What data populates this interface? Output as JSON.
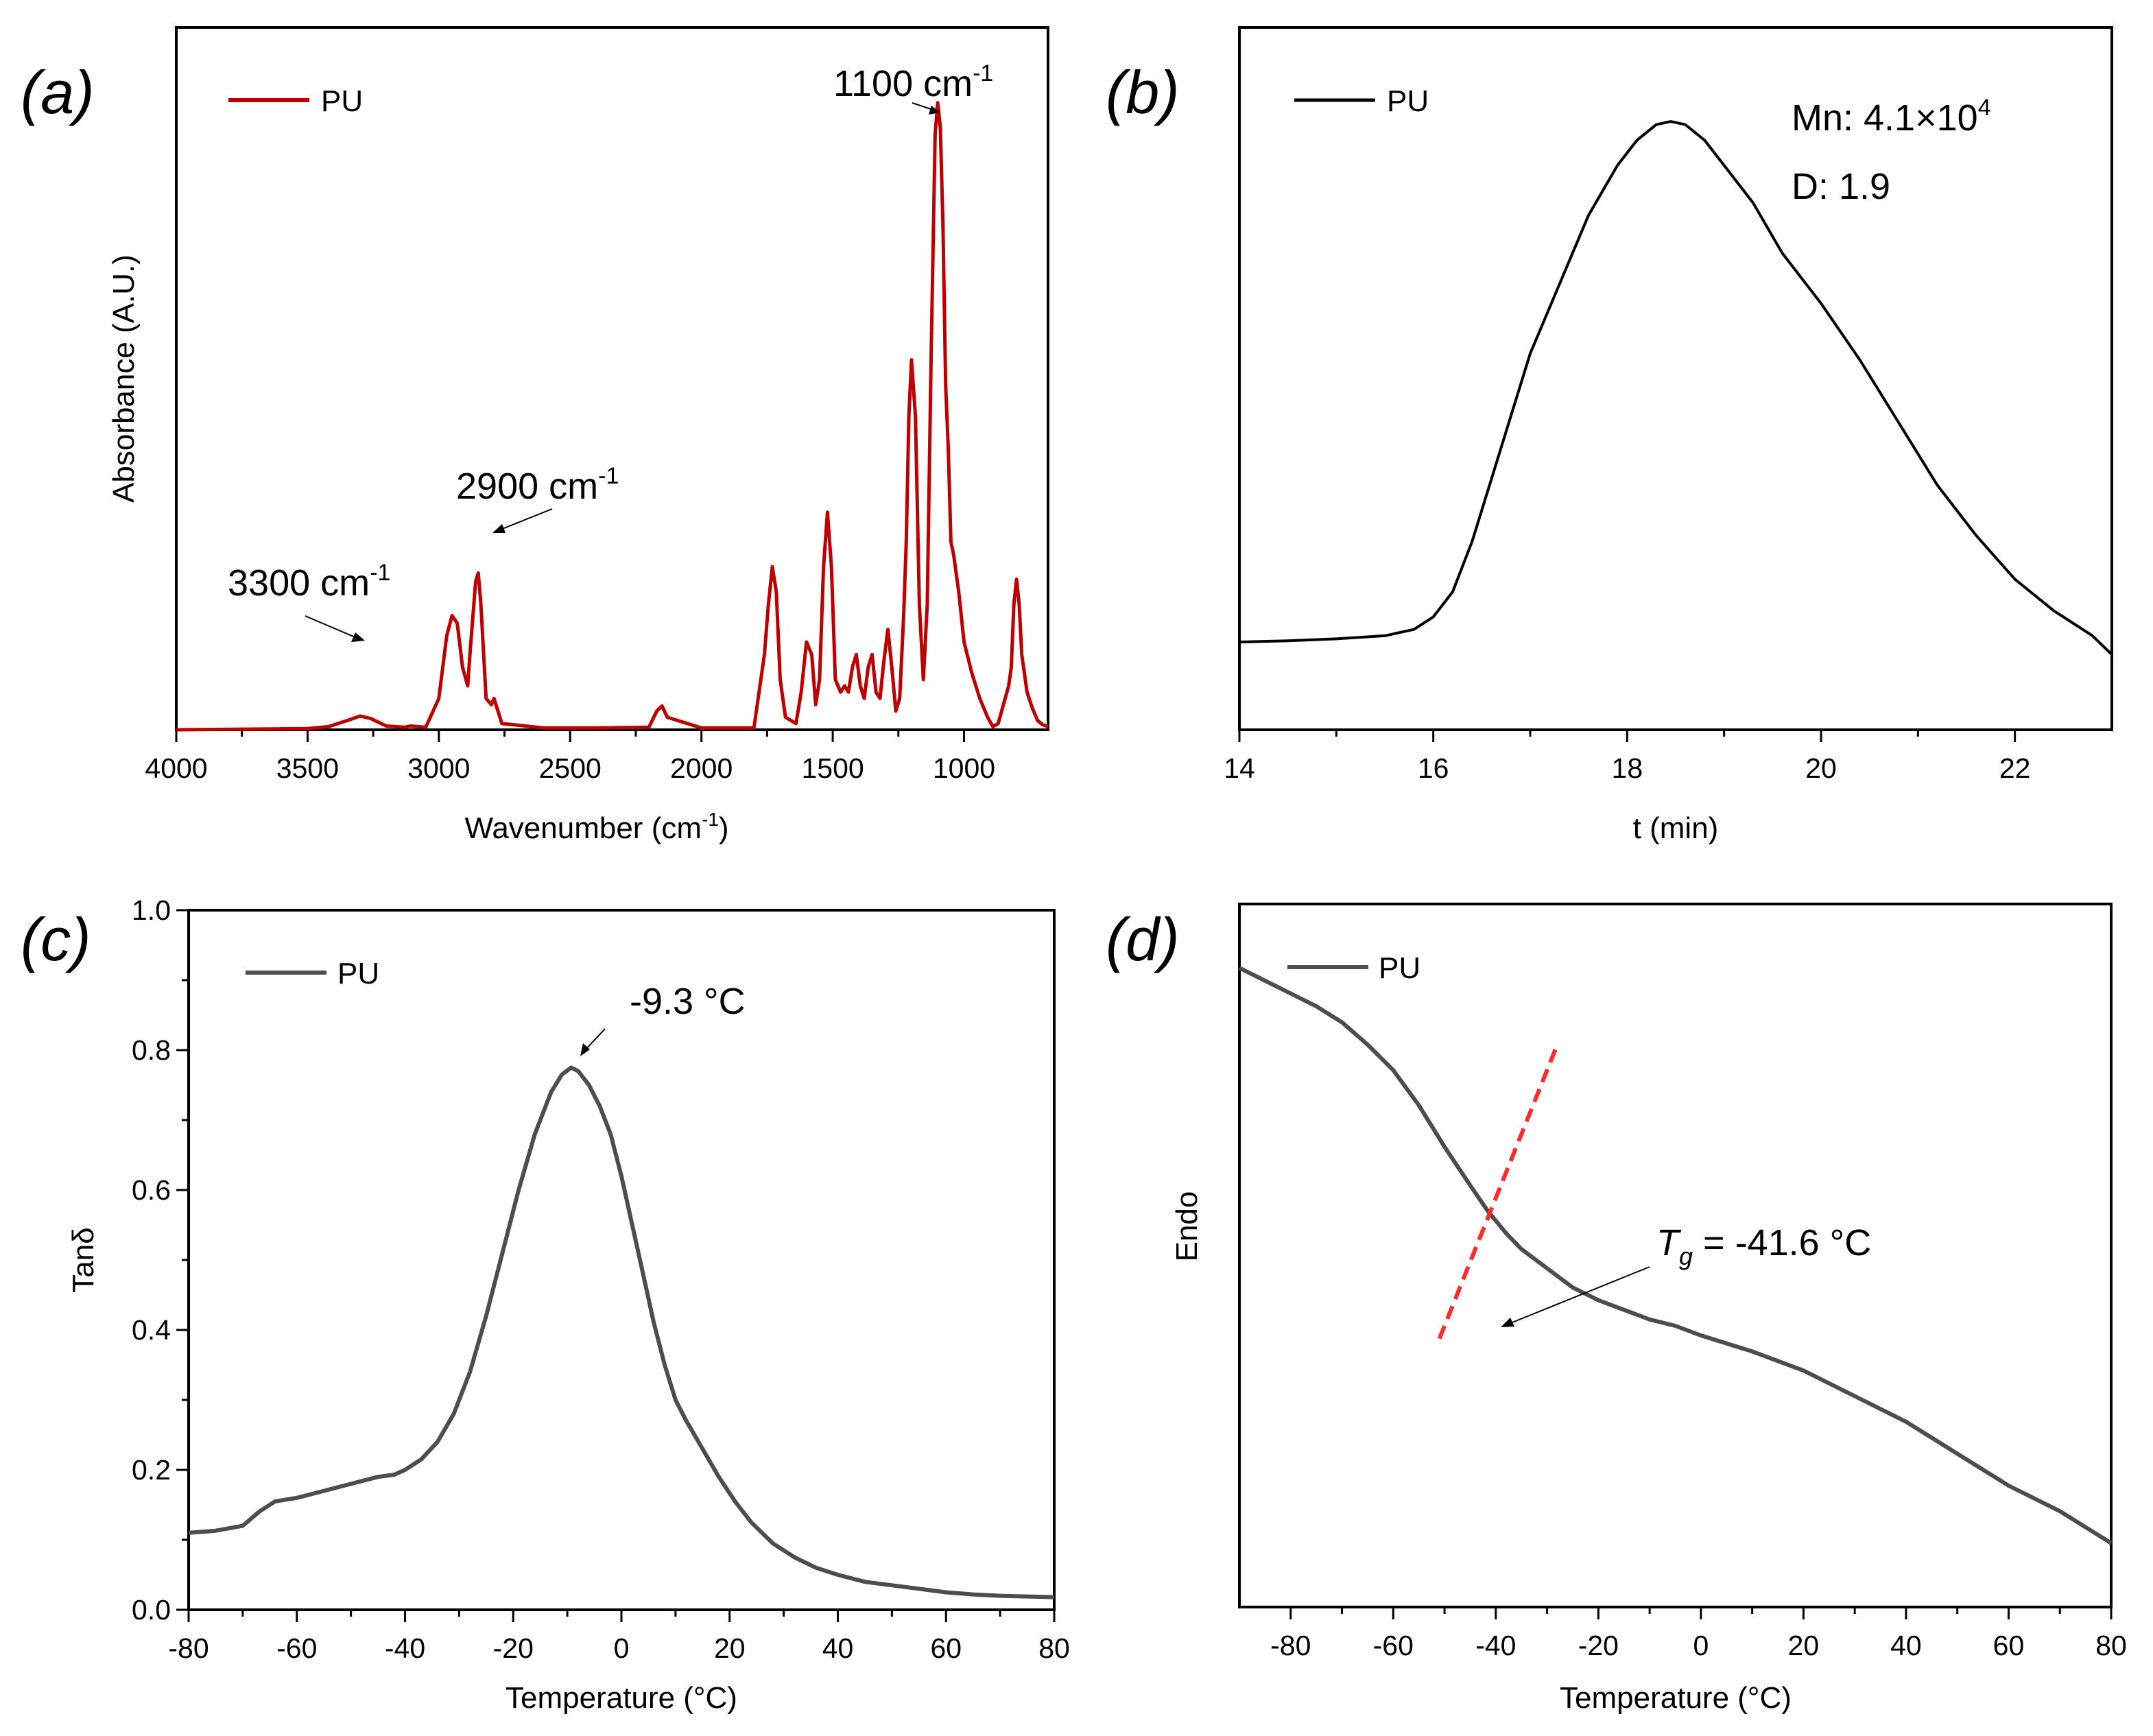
{
  "colors": {
    "ftir": "#c00000",
    "gpc": "#000000",
    "dma": "#4d4d4d",
    "dsc": "#4d4d4d",
    "tangent": "#ff2a2a"
  },
  "chart_data": [
    {
      "panel": "(a)",
      "type": "line",
      "title": "",
      "xlabel": "Wavenumber (cm",
      "xlabel_sup": "-1",
      "xlabel_suffix": ")",
      "ylabel": "Absorbance (A.U.)",
      "xlim": [
        4000,
        680
      ],
      "xticks": [
        4000,
        3500,
        3000,
        2500,
        2000,
        1500,
        1000
      ],
      "ylim": [
        0,
        1.12
      ],
      "yticks_shown": false,
      "legend": [
        "PU"
      ],
      "series": [
        {
          "name": "PU",
          "x": [
            4000,
            3500,
            3420,
            3340,
            3300,
            3260,
            3200,
            3130,
            3110,
            3050,
            3000,
            2970,
            2950,
            2930,
            2910,
            2890,
            2880,
            2860,
            2850,
            2840,
            2820,
            2800,
            2790,
            2760,
            2600,
            2400,
            2200,
            2170,
            2150,
            2130,
            2000,
            1800,
            1760,
            1745,
            1730,
            1715,
            1700,
            1680,
            1640,
            1620,
            1600,
            1580,
            1565,
            1550,
            1535,
            1520,
            1505,
            1490,
            1470,
            1455,
            1440,
            1425,
            1410,
            1395,
            1380,
            1365,
            1350,
            1335,
            1320,
            1305,
            1290,
            1275,
            1260,
            1245,
            1230,
            1220,
            1210,
            1200,
            1185,
            1170,
            1155,
            1140,
            1125,
            1110,
            1100,
            1090,
            1080,
            1070,
            1060,
            1050,
            1040,
            1020,
            1000,
            970,
            940,
            910,
            890,
            870,
            850,
            830,
            820,
            810,
            800,
            790,
            780,
            760,
            740,
            720,
            700,
            680
          ],
          "y": [
            0,
            0.002,
            0.005,
            0.016,
            0.022,
            0.018,
            0.006,
            0.004,
            0.006,
            0.004,
            0.05,
            0.15,
            0.182,
            0.17,
            0.1,
            0.07,
            0.13,
            0.236,
            0.25,
            0.2,
            0.05,
            0.04,
            0.05,
            0.01,
            0.003,
            0.003,
            0.004,
            0.03,
            0.038,
            0.02,
            0.003,
            0.003,
            0.12,
            0.2,
            0.26,
            0.22,
            0.08,
            0.02,
            0.01,
            0.06,
            0.14,
            0.12,
            0.04,
            0.08,
            0.26,
            0.347,
            0.26,
            0.08,
            0.06,
            0.07,
            0.06,
            0.1,
            0.12,
            0.07,
            0.05,
            0.1,
            0.12,
            0.06,
            0.05,
            0.11,
            0.16,
            0.1,
            0.03,
            0.05,
            0.18,
            0.3,
            0.5,
            0.59,
            0.5,
            0.2,
            0.08,
            0.2,
            0.6,
            0.95,
            1.0,
            0.96,
            0.8,
            0.55,
            0.45,
            0.3,
            0.28,
            0.22,
            0.14,
            0.09,
            0.05,
            0.02,
            0.005,
            0.01,
            0.04,
            0.07,
            0.1,
            0.2,
            0.24,
            0.2,
            0.12,
            0.06,
            0.035,
            0.015,
            0.008,
            0.005
          ]
        }
      ],
      "annotations": [
        {
          "text": "3300 cm",
          "sup": "-1",
          "x": 3300
        },
        {
          "text": "2900 cm",
          "sup": "-1",
          "x": 2900
        },
        {
          "text": "1100 cm",
          "sup": "-1",
          "x": 1100
        }
      ]
    },
    {
      "panel": "(b)",
      "type": "line",
      "title": "",
      "xlabel": "t (min)",
      "ylabel": "",
      "xlim": [
        14,
        23
      ],
      "xticks": [
        14,
        16,
        18,
        20,
        22
      ],
      "ylim": [
        0,
        1.12
      ],
      "yticks_shown": false,
      "legend": [
        "PU"
      ],
      "series": [
        {
          "name": "PU",
          "x": [
            14,
            14.5,
            15,
            15.5,
            15.8,
            16,
            16.2,
            16.4,
            16.6,
            16.8,
            17,
            17.3,
            17.6,
            17.9,
            18.1,
            18.3,
            18.45,
            18.6,
            18.8,
            19,
            19.3,
            19.6,
            20,
            20.4,
            20.8,
            21.2,
            21.6,
            22,
            22.4,
            22.8,
            23
          ],
          "y": [
            0.14,
            0.142,
            0.145,
            0.15,
            0.16,
            0.18,
            0.22,
            0.3,
            0.4,
            0.5,
            0.6,
            0.71,
            0.82,
            0.9,
            0.94,
            0.965,
            0.97,
            0.965,
            0.94,
            0.9,
            0.84,
            0.76,
            0.68,
            0.59,
            0.49,
            0.39,
            0.31,
            0.24,
            0.19,
            0.15,
            0.12
          ]
        }
      ],
      "annotations": [
        {
          "text": "Mn: 4.1×10",
          "sup": "4"
        },
        {
          "text": "D: 1.9"
        }
      ]
    },
    {
      "panel": "(c)",
      "type": "line",
      "title": "",
      "xlabel": "Temperature (°C)",
      "ylabel": "Tanδ",
      "xlim": [
        -80,
        80
      ],
      "xticks": [
        -80,
        -60,
        -40,
        -20,
        0,
        20,
        40,
        60,
        80
      ],
      "ylim": [
        0,
        1.0
      ],
      "yticks": [
        0.0,
        0.2,
        0.4,
        0.6,
        0.8,
        1.0
      ],
      "ytick_labels": [
        "0.0",
        "0.2",
        "0.4",
        "0.6",
        "0.8",
        "1.0"
      ],
      "legend": [
        "PU"
      ],
      "series": [
        {
          "name": "PU",
          "x": [
            -80,
            -75,
            -70,
            -67,
            -64,
            -60,
            -55,
            -50,
            -45,
            -42,
            -40,
            -37,
            -34,
            -31,
            -28,
            -25,
            -22,
            -19,
            -16,
            -13,
            -11,
            -9.3,
            -8,
            -6,
            -4,
            -2,
            0,
            2,
            4,
            6,
            8,
            10,
            12,
            15,
            18,
            21,
            24,
            28,
            32,
            36,
            40,
            45,
            50,
            55,
            60,
            65,
            70,
            75,
            80
          ],
          "y": [
            0.11,
            0.113,
            0.12,
            0.14,
            0.155,
            0.16,
            0.17,
            0.18,
            0.19,
            0.193,
            0.2,
            0.215,
            0.24,
            0.28,
            0.34,
            0.42,
            0.51,
            0.6,
            0.68,
            0.74,
            0.765,
            0.775,
            0.77,
            0.75,
            0.72,
            0.68,
            0.62,
            0.55,
            0.48,
            0.41,
            0.35,
            0.3,
            0.27,
            0.23,
            0.19,
            0.155,
            0.125,
            0.095,
            0.075,
            0.06,
            0.05,
            0.04,
            0.035,
            0.03,
            0.025,
            0.022,
            0.02,
            0.019,
            0.018
          ]
        }
      ],
      "annotations": [
        {
          "text": "-9.3 °C",
          "x": -9.3,
          "y": 0.775
        }
      ]
    },
    {
      "panel": "(d)",
      "type": "line",
      "title": "",
      "xlabel": "Temperature (°C)",
      "ylabel": "Endo",
      "xlim": [
        -90,
        80
      ],
      "xticks": [
        -80,
        -60,
        -40,
        -20,
        0,
        20,
        40,
        60,
        80
      ],
      "ylim": [
        0,
        1.1
      ],
      "yticks_shown": false,
      "legend": [
        "PU"
      ],
      "series": [
        {
          "name": "PU",
          "x": [
            -90,
            -85,
            -80,
            -75,
            -70,
            -65,
            -60,
            -55,
            -50,
            -45,
            -41.6,
            -38,
            -35,
            -30,
            -25,
            -20,
            -15,
            -10,
            -5,
            0,
            10,
            20,
            30,
            40,
            50,
            60,
            70,
            80
          ],
          "y": [
            1.0,
            0.98,
            0.96,
            0.94,
            0.915,
            0.88,
            0.84,
            0.785,
            0.72,
            0.66,
            0.62,
            0.585,
            0.56,
            0.53,
            0.5,
            0.48,
            0.465,
            0.45,
            0.44,
            0.425,
            0.4,
            0.37,
            0.33,
            0.29,
            0.24,
            0.19,
            0.15,
            0.1
          ]
        }
      ],
      "tangent_line": {
        "x": [
          -51,
          -28
        ],
        "y": [
          0.42,
          0.88
        ]
      },
      "annotations": [
        {
          "text_italic": "T",
          "sub": "g",
          "text": " = -41.6 °C",
          "x": -41.6,
          "y": 0.62
        }
      ]
    }
  ]
}
